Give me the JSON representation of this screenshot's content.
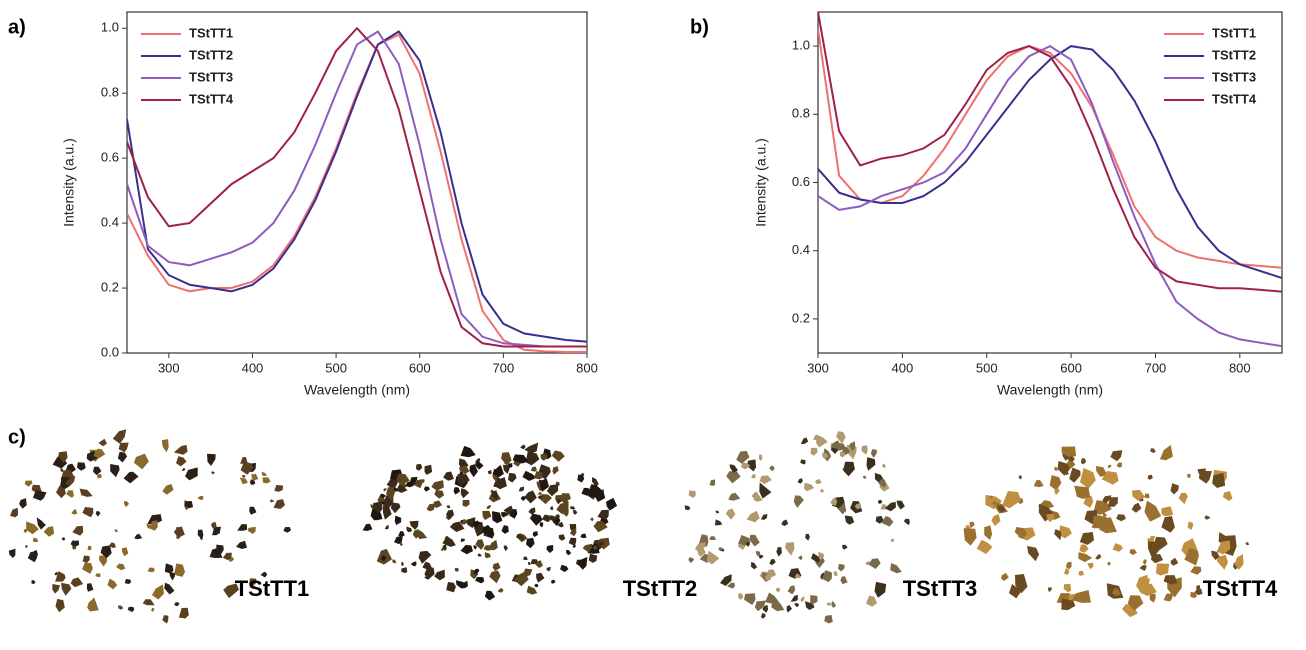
{
  "chart_data": [
    {
      "type": "line",
      "panel_label": "a)",
      "xlabel": "Wavelength (nm)",
      "ylabel": "Intensity (a.u.)",
      "xlim": [
        250,
        800
      ],
      "xticks": [
        300,
        400,
        500,
        600,
        700,
        800
      ],
      "ylim": [
        0,
        1.05
      ],
      "yticks": [
        {
          "value": 0,
          "label": "0.0"
        },
        0.2,
        0.4,
        0.6,
        0.8,
        {
          "value": 1,
          "label": "1.0"
        }
      ],
      "legend": "upper left",
      "x": [
        250,
        275,
        300,
        325,
        350,
        375,
        400,
        425,
        450,
        475,
        500,
        525,
        550,
        575,
        600,
        625,
        650,
        675,
        700,
        725,
        750,
        775,
        800
      ],
      "series": [
        {
          "name": "TStTT1",
          "color": "#f07070",
          "values": [
            0.43,
            0.3,
            0.21,
            0.19,
            0.2,
            0.2,
            0.22,
            0.27,
            0.36,
            0.48,
            0.63,
            0.8,
            0.95,
            0.98,
            0.86,
            0.62,
            0.35,
            0.13,
            0.04,
            0.01,
            0.005,
            0.003,
            0.003
          ]
        },
        {
          "name": "TStTT2",
          "color": "#3a2e8e",
          "values": [
            0.72,
            0.32,
            0.24,
            0.21,
            0.2,
            0.19,
            0.21,
            0.26,
            0.35,
            0.47,
            0.62,
            0.79,
            0.95,
            0.99,
            0.9,
            0.68,
            0.4,
            0.18,
            0.09,
            0.06,
            0.05,
            0.04,
            0.035
          ]
        },
        {
          "name": "TStTT3",
          "color": "#8c5cc0",
          "values": [
            0.52,
            0.33,
            0.28,
            0.27,
            0.29,
            0.31,
            0.34,
            0.4,
            0.5,
            0.64,
            0.8,
            0.95,
            0.99,
            0.89,
            0.64,
            0.35,
            0.12,
            0.05,
            0.03,
            0.025,
            0.02,
            0.02,
            0.02
          ]
        },
        {
          "name": "TStTT4",
          "color": "#a0204a",
          "values": [
            0.65,
            0.48,
            0.39,
            0.4,
            0.46,
            0.52,
            0.56,
            0.6,
            0.68,
            0.8,
            0.93,
            1.0,
            0.93,
            0.75,
            0.5,
            0.25,
            0.08,
            0.03,
            0.02,
            0.02,
            0.02,
            0.02,
            0.02
          ]
        }
      ]
    },
    {
      "type": "line",
      "panel_label": "b)",
      "xlabel": "Wavelength (nm)",
      "ylabel": "Intensity (a.u.)",
      "xlim": [
        300,
        850
      ],
      "xticks": [
        300,
        400,
        500,
        600,
        700,
        800
      ],
      "ylim": [
        0.1,
        1.1
      ],
      "yticks": [
        0.2,
        0.4,
        0.6,
        0.8,
        {
          "value": 1,
          "label": "1.0"
        }
      ],
      "legend": "upper right",
      "x": [
        300,
        325,
        350,
        375,
        400,
        425,
        450,
        475,
        500,
        525,
        550,
        575,
        600,
        625,
        650,
        675,
        700,
        725,
        750,
        775,
        800,
        825,
        850
      ],
      "series": [
        {
          "name": "TStTT1",
          "color": "#f07070",
          "values": [
            1.05,
            0.62,
            0.55,
            0.54,
            0.56,
            0.62,
            0.7,
            0.8,
            0.9,
            0.97,
            1.0,
            0.98,
            0.92,
            0.82,
            0.68,
            0.53,
            0.44,
            0.4,
            0.38,
            0.37,
            0.36,
            0.355,
            0.35
          ]
        },
        {
          "name": "TStTT2",
          "color": "#3a2e8e",
          "values": [
            0.64,
            0.57,
            0.55,
            0.54,
            0.54,
            0.56,
            0.6,
            0.66,
            0.74,
            0.82,
            0.9,
            0.96,
            1.0,
            0.99,
            0.93,
            0.84,
            0.72,
            0.58,
            0.47,
            0.4,
            0.36,
            0.34,
            0.32
          ]
        },
        {
          "name": "TStTT3",
          "color": "#8c5cc0",
          "values": [
            0.56,
            0.52,
            0.53,
            0.56,
            0.58,
            0.6,
            0.63,
            0.7,
            0.8,
            0.9,
            0.97,
            1.0,
            0.96,
            0.83,
            0.66,
            0.5,
            0.36,
            0.25,
            0.2,
            0.16,
            0.14,
            0.13,
            0.12
          ]
        },
        {
          "name": "TStTT4",
          "color": "#a0204a",
          "values": [
            1.1,
            0.75,
            0.65,
            0.67,
            0.68,
            0.7,
            0.74,
            0.83,
            0.93,
            0.98,
            1.0,
            0.97,
            0.88,
            0.74,
            0.58,
            0.44,
            0.35,
            0.31,
            0.3,
            0.29,
            0.29,
            0.285,
            0.28
          ]
        }
      ]
    }
  ],
  "photos": {
    "panel_label": "c)",
    "samples": [
      "TStTT1",
      "TStTT2",
      "TStTT3",
      "TStTT4"
    ]
  }
}
